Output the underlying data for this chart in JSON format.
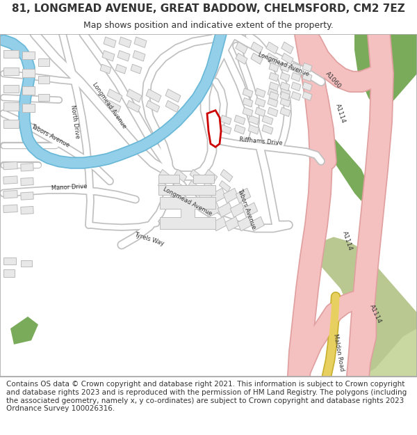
{
  "title": "81, LONGMEAD AVENUE, GREAT BADDOW, CHELMSFORD, CM2 7EZ",
  "subtitle": "Map shows position and indicative extent of the property.",
  "footer": "Contains OS data © Crown copyright and database right 2021. This information is subject to Crown copyright and database rights 2023 and is reproduced with the permission of HM Land Registry. The polygons (including the associated geometry, namely x, y co-ordinates) are subject to Crown copyright and database rights 2023 Ordnance Survey 100026316.",
  "map_bg": "#ffffff",
  "road_color": "#ffffff",
  "road_outline": "#cccccc",
  "building_fill": "#e8e8e8",
  "building_edge": "#bbbbbb",
  "water_color": "#93cfe8",
  "water_outline": "#6ab8d8",
  "green_color": "#7aab5a",
  "green_light": "#c8d8a0",
  "pink_road": "#f5c0c0",
  "pink_road_outline": "#e0a0a0",
  "yellow_road": "#f0d060",
  "highlight_color": "#cc0000",
  "text_color": "#333333",
  "title_fontsize": 11,
  "subtitle_fontsize": 9,
  "footer_fontsize": 7.5
}
